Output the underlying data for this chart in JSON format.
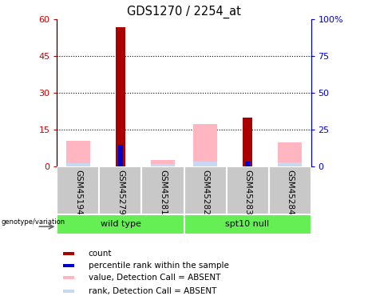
{
  "title": "GDS1270 / 2254_at",
  "samples": [
    "GSM45194",
    "GSM45279",
    "GSM45281",
    "GSM45282",
    "GSM45283",
    "GSM45284"
  ],
  "group_labels": [
    "wild type",
    "spt10 null"
  ],
  "count_values": [
    0,
    57,
    0,
    0,
    20,
    0
  ],
  "percentile_values": [
    0,
    14.5,
    0,
    0,
    3.5,
    0
  ],
  "value_absent": [
    10.5,
    0,
    2.5,
    17.5,
    0,
    10
  ],
  "rank_absent": [
    2.5,
    0,
    1.5,
    3.5,
    0,
    3
  ],
  "ylim_left": [
    0,
    60
  ],
  "ylim_right": [
    0,
    100
  ],
  "yticks_left": [
    0,
    15,
    30,
    45,
    60
  ],
  "yticks_right": [
    0,
    25,
    50,
    75,
    100
  ],
  "ytick_labels_left": [
    "0",
    "15",
    "30",
    "45",
    "60"
  ],
  "ytick_labels_right": [
    "0",
    "25",
    "50",
    "75",
    "100%"
  ],
  "color_count": "#aa0000",
  "color_percentile": "#0000cc",
  "color_value_absent": "#FFB6C1",
  "color_rank_absent": "#c8d8f0",
  "left_tick_color": "#cc0000",
  "right_tick_color": "#0000cc",
  "background_label": "#c8c8c8",
  "background_group": "#66ee55",
  "legend_items": [
    [
      "#aa0000",
      "count"
    ],
    [
      "#0000cc",
      "percentile rank within the sample"
    ],
    [
      "#FFB6C1",
      "value, Detection Call = ABSENT"
    ],
    [
      "#c8d8f0",
      "rank, Detection Call = ABSENT"
    ]
  ]
}
